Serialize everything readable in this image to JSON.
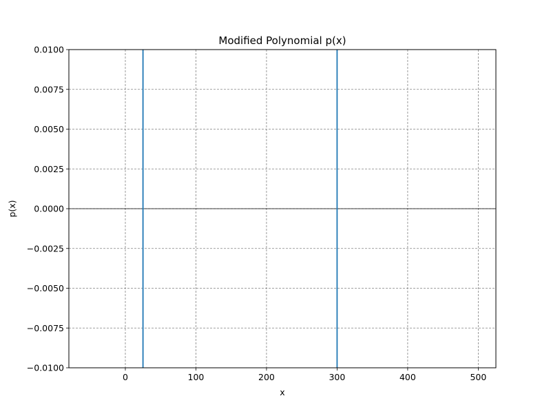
{
  "chart_data": {
    "type": "line",
    "title": "Modified Polynomial p(x)",
    "xlabel": "x",
    "ylabel": "p(x)",
    "xlim": [
      -80,
      525
    ],
    "ylim": [
      -0.01,
      0.01
    ],
    "grid": true,
    "x_ticks": [
      0,
      100,
      200,
      300,
      400,
      500
    ],
    "x_tick_labels": [
      "0",
      "100",
      "200",
      "300",
      "400",
      "500"
    ],
    "y_ticks": [
      0.01,
      0.0075,
      0.005,
      0.0025,
      0.0,
      -0.0025,
      -0.005,
      -0.0075,
      -0.01
    ],
    "y_tick_labels": [
      "0.0100",
      "0.0075",
      "0.0050",
      "0.0025",
      "0.0000",
      "−0.0025",
      "−0.0050",
      "−0.0075",
      "−0.0100"
    ],
    "reference_lines": [
      {
        "axis": "y",
        "value": 0.0,
        "color": "#000000"
      }
    ],
    "series": [
      {
        "color": "#1f77b4",
        "segments": [
          [
            [
              25,
              -0.01
            ],
            [
              25,
              0.01
            ]
          ],
          [
            [
              300,
              -0.01
            ],
            [
              300,
              0.01
            ]
          ]
        ]
      }
    ]
  }
}
